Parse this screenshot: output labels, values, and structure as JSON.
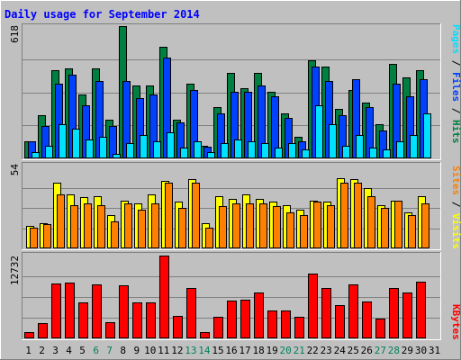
{
  "title": "Daily usage for September 2014",
  "colors": {
    "background": "#c0c0c0",
    "title": "#0000ff",
    "hits": "#008040",
    "files": "#0040ff",
    "pages": "#00e0ff",
    "visits": "#ffff00",
    "sites": "#ff8000",
    "kbytes": "#ff0000",
    "weekend_day": "#00805c",
    "weekday": "#000000"
  },
  "axis_max_labels": {
    "top": "618",
    "middle": "54",
    "bottom": "12732"
  },
  "legend": {
    "top": [
      {
        "text": "Pages",
        "color": "#00e0ff"
      },
      {
        "text": " / ",
        "color": "#000000"
      },
      {
        "text": "Files",
        "color": "#0040ff"
      },
      {
        "text": " / ",
        "color": "#000000"
      },
      {
        "text": "Hits",
        "color": "#008040"
      }
    ],
    "middle": [
      {
        "text": "Sites",
        "color": "#ff8000"
      },
      {
        "text": " / ",
        "color": "#000000"
      },
      {
        "text": "Visits",
        "color": "#ffff00"
      }
    ],
    "bottom": [
      {
        "text": "KBytes",
        "color": "#ff0000"
      }
    ]
  },
  "chart_data": {
    "type": "bar",
    "title": "Daily usage for September 2014",
    "categories": [
      "1",
      "2",
      "3",
      "4",
      "5",
      "6",
      "7",
      "8",
      "9",
      "10",
      "11",
      "12",
      "13",
      "14",
      "15",
      "16",
      "17",
      "18",
      "19",
      "20",
      "21",
      "22",
      "23",
      "24",
      "25",
      "26",
      "27",
      "28",
      "29",
      "30",
      "31"
    ],
    "weekend_days": [
      "6",
      "7",
      "13",
      "14",
      "20",
      "21",
      "27",
      "28"
    ],
    "panels": [
      {
        "ymax": 618,
        "series": [
          {
            "name": "Hits",
            "values": [
              80,
              200,
              410,
              420,
              300,
              420,
              180,
              618,
              340,
              340,
              520,
              180,
              350,
              60,
              240,
              400,
              330,
              400,
              310,
              210,
              100,
              460,
              430,
              230,
              320,
              260,
              160,
              440,
              380,
              410,
              0
            ]
          },
          {
            "name": "Files",
            "values": [
              80,
              150,
              350,
              390,
              250,
              360,
              150,
              360,
              280,
              300,
              470,
              170,
              320,
              55,
              210,
              310,
              310,
              340,
              290,
              190,
              80,
              430,
              360,
              200,
              370,
              240,
              130,
              350,
              290,
              370,
              0
            ]
          },
          {
            "name": "Pages",
            "values": [
              30,
              60,
              160,
              140,
              90,
              100,
              20,
              70,
              110,
              80,
              120,
              50,
              80,
              30,
              70,
              90,
              80,
              70,
              50,
              70,
              40,
              250,
              160,
              60,
              110,
              50,
              40,
              80,
              110,
              210,
              0
            ]
          }
        ]
      },
      {
        "ymax": 54,
        "series": [
          {
            "name": "Visits",
            "values": [
              15,
              17,
              44,
              36,
              34,
              35,
              22,
              32,
              30,
              36,
              45,
              31,
              46,
              17,
              35,
              33,
              36,
              33,
              31,
              29,
              26,
              32,
              31,
              47,
              46,
              40,
              29,
              32,
              24,
              35,
              0
            ]
          },
          {
            "name": "Sites",
            "values": [
              14,
              16,
              36,
              29,
              30,
              29,
              18,
              30,
              26,
              30,
              44,
              27,
              44,
              14,
              28,
              30,
              30,
              30,
              28,
              24,
              22,
              31,
              29,
              44,
              44,
              35,
              27,
              32,
              22,
              30,
              0
            ]
          }
        ]
      },
      {
        "ymax": 12732,
        "series": [
          {
            "name": "KBytes",
            "values": [
              1000,
              2300,
              8400,
              8600,
              5600,
              8300,
              2500,
              8200,
              5600,
              5600,
              12732,
              3400,
              7700,
              1000,
              3300,
              5800,
              5900,
              7100,
              4300,
              4300,
              3300,
              10000,
              7700,
              5100,
              8300,
              5700,
              3100,
              7800,
              7100,
              8700,
              0
            ]
          }
        ]
      }
    ]
  }
}
